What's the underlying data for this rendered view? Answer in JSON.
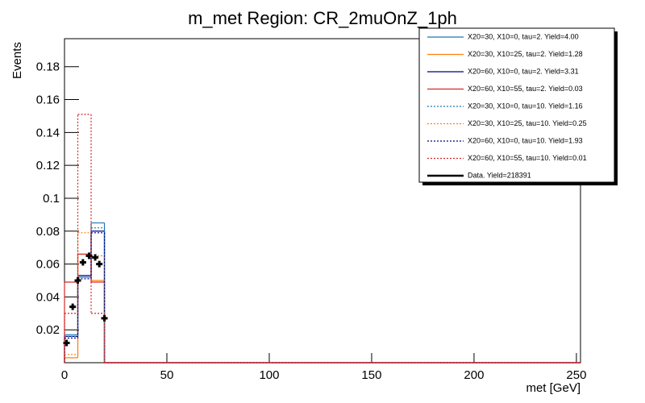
{
  "chart_data": {
    "type": "histogram",
    "title": "m_met Region: CR_2muOnZ_1ph",
    "x_label": "met [GeV]",
    "y_label": "Events",
    "xlim": [
      0,
      252
    ],
    "ylim": [
      0,
      0.197
    ],
    "xticks": [
      0,
      50,
      100,
      150,
      200,
      250
    ],
    "yticks": [
      0.02,
      0.04,
      0.06,
      0.08,
      0.1,
      0.12,
      0.14,
      0.16,
      0.18
    ],
    "bins": [
      0,
      6.5,
      13,
      19.5
    ],
    "series": [
      {
        "name": "X20=30, X10=0, tau=2. Yield=4.00",
        "color": "#1f77b4",
        "dashed": false,
        "values": [
          0.017,
          0.052,
          0.085
        ]
      },
      {
        "name": "X20=30, X10=25, tau=2. Yield=1.28",
        "color": "#ff7f0e",
        "dashed": false,
        "values": [
          0.003,
          0.066,
          0.05
        ]
      },
      {
        "name": "X20=60, X10=0, tau=2. Yield=3.31",
        "color": "#000080",
        "dashed": false,
        "values": [
          0.016,
          0.053,
          0.08
        ]
      },
      {
        "name": "X20=60, X10=55, tau=2. Yield=0.03",
        "color": "#d62728",
        "dashed": false,
        "values": [
          0.049,
          0.066,
          0.049
        ]
      },
      {
        "name": "X20=30, X10=0, tau=10. Yield=1.16",
        "color": "#1f77b4",
        "dashed": true,
        "values": [
          0.016,
          0.051,
          0.082
        ]
      },
      {
        "name": "X20=30, X10=25, tau=10. Yield=0.25",
        "color": "#ff7f0e",
        "dashed": true,
        "values": [
          0.005,
          0.079,
          0.065
        ]
      },
      {
        "name": "X20=60, X10=0, tau=10. Yield=1.93",
        "color": "#000080",
        "dashed": true,
        "values": [
          0.015,
          0.051,
          0.079
        ]
      },
      {
        "name": "X20=60, X10=55, tau=10. Yield=0.01",
        "color": "#d62728",
        "dashed": true,
        "values": [
          0.03,
          0.151,
          0.03
        ]
      }
    ],
    "data_points": {
      "name": "Data. Yield=218391",
      "color": "#000000",
      "x": [
        1,
        4,
        6.5,
        9,
        12,
        15,
        17,
        19.5
      ],
      "values": [
        0.012,
        0.034,
        0.05,
        0.061,
        0.065,
        0.064,
        0.06,
        0.027
      ]
    }
  }
}
